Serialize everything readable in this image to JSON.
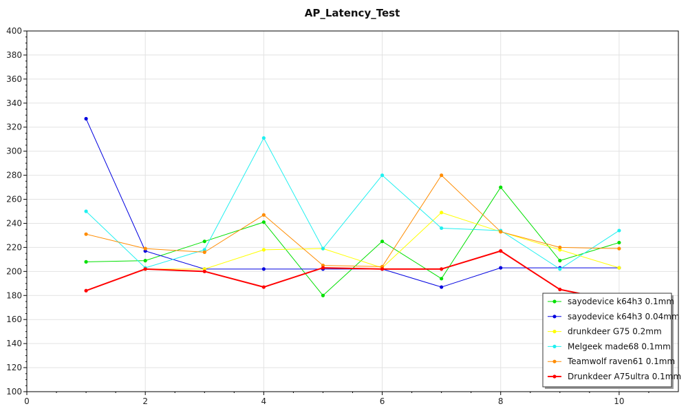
{
  "chart_data": {
    "type": "line",
    "title": "AP_Latency_Test",
    "xlabel": "",
    "ylabel": "",
    "xlim": [
      0,
      11
    ],
    "ylim": [
      100,
      400
    ],
    "x_ticks": [
      0,
      2,
      4,
      6,
      8,
      10
    ],
    "y_ticks": [
      100,
      120,
      140,
      160,
      180,
      200,
      220,
      240,
      260,
      280,
      300,
      320,
      340,
      360,
      380,
      400
    ],
    "grid": true,
    "legend_position": "bottom-right",
    "x": [
      1,
      2,
      3,
      4,
      5,
      6,
      7,
      8,
      9,
      10
    ],
    "series": [
      {
        "name": "sayodevice k64h3 0.1mm",
        "color": "#00e000",
        "values": [
          208,
          209,
          225,
          241,
          180,
          225,
          194,
          270,
          209,
          224
        ]
      },
      {
        "name": "sayodevice k64h3 0.04mm",
        "color": "#0000e0",
        "values": [
          327,
          217,
          202,
          202,
          202,
          202,
          187,
          203,
          203,
          203
        ]
      },
      {
        "name": "drunkdeer G75 0.2mm",
        "color": "#ffff00",
        "values": [
          null,
          202,
          202,
          218,
          219,
          203,
          249,
          233,
          218,
          203
        ]
      },
      {
        "name": "Melgeek made68 0.1mm",
        "color": "#20f0f0",
        "values": [
          250,
          203,
          218,
          311,
          219,
          280,
          236,
          234,
          202,
          234
        ]
      },
      {
        "name": "Teamwolf raven61 0.1mm",
        "color": "#ff8c00",
        "values": [
          231,
          219,
          216,
          247,
          205,
          204,
          280,
          233,
          220,
          219
        ]
      },
      {
        "name": "Drunkdeer A75ultra 0.1mm",
        "color": "#ff0000",
        "values": [
          184,
          202,
          200,
          187,
          203,
          202,
          202,
          217,
          185,
          175
        ]
      }
    ]
  }
}
